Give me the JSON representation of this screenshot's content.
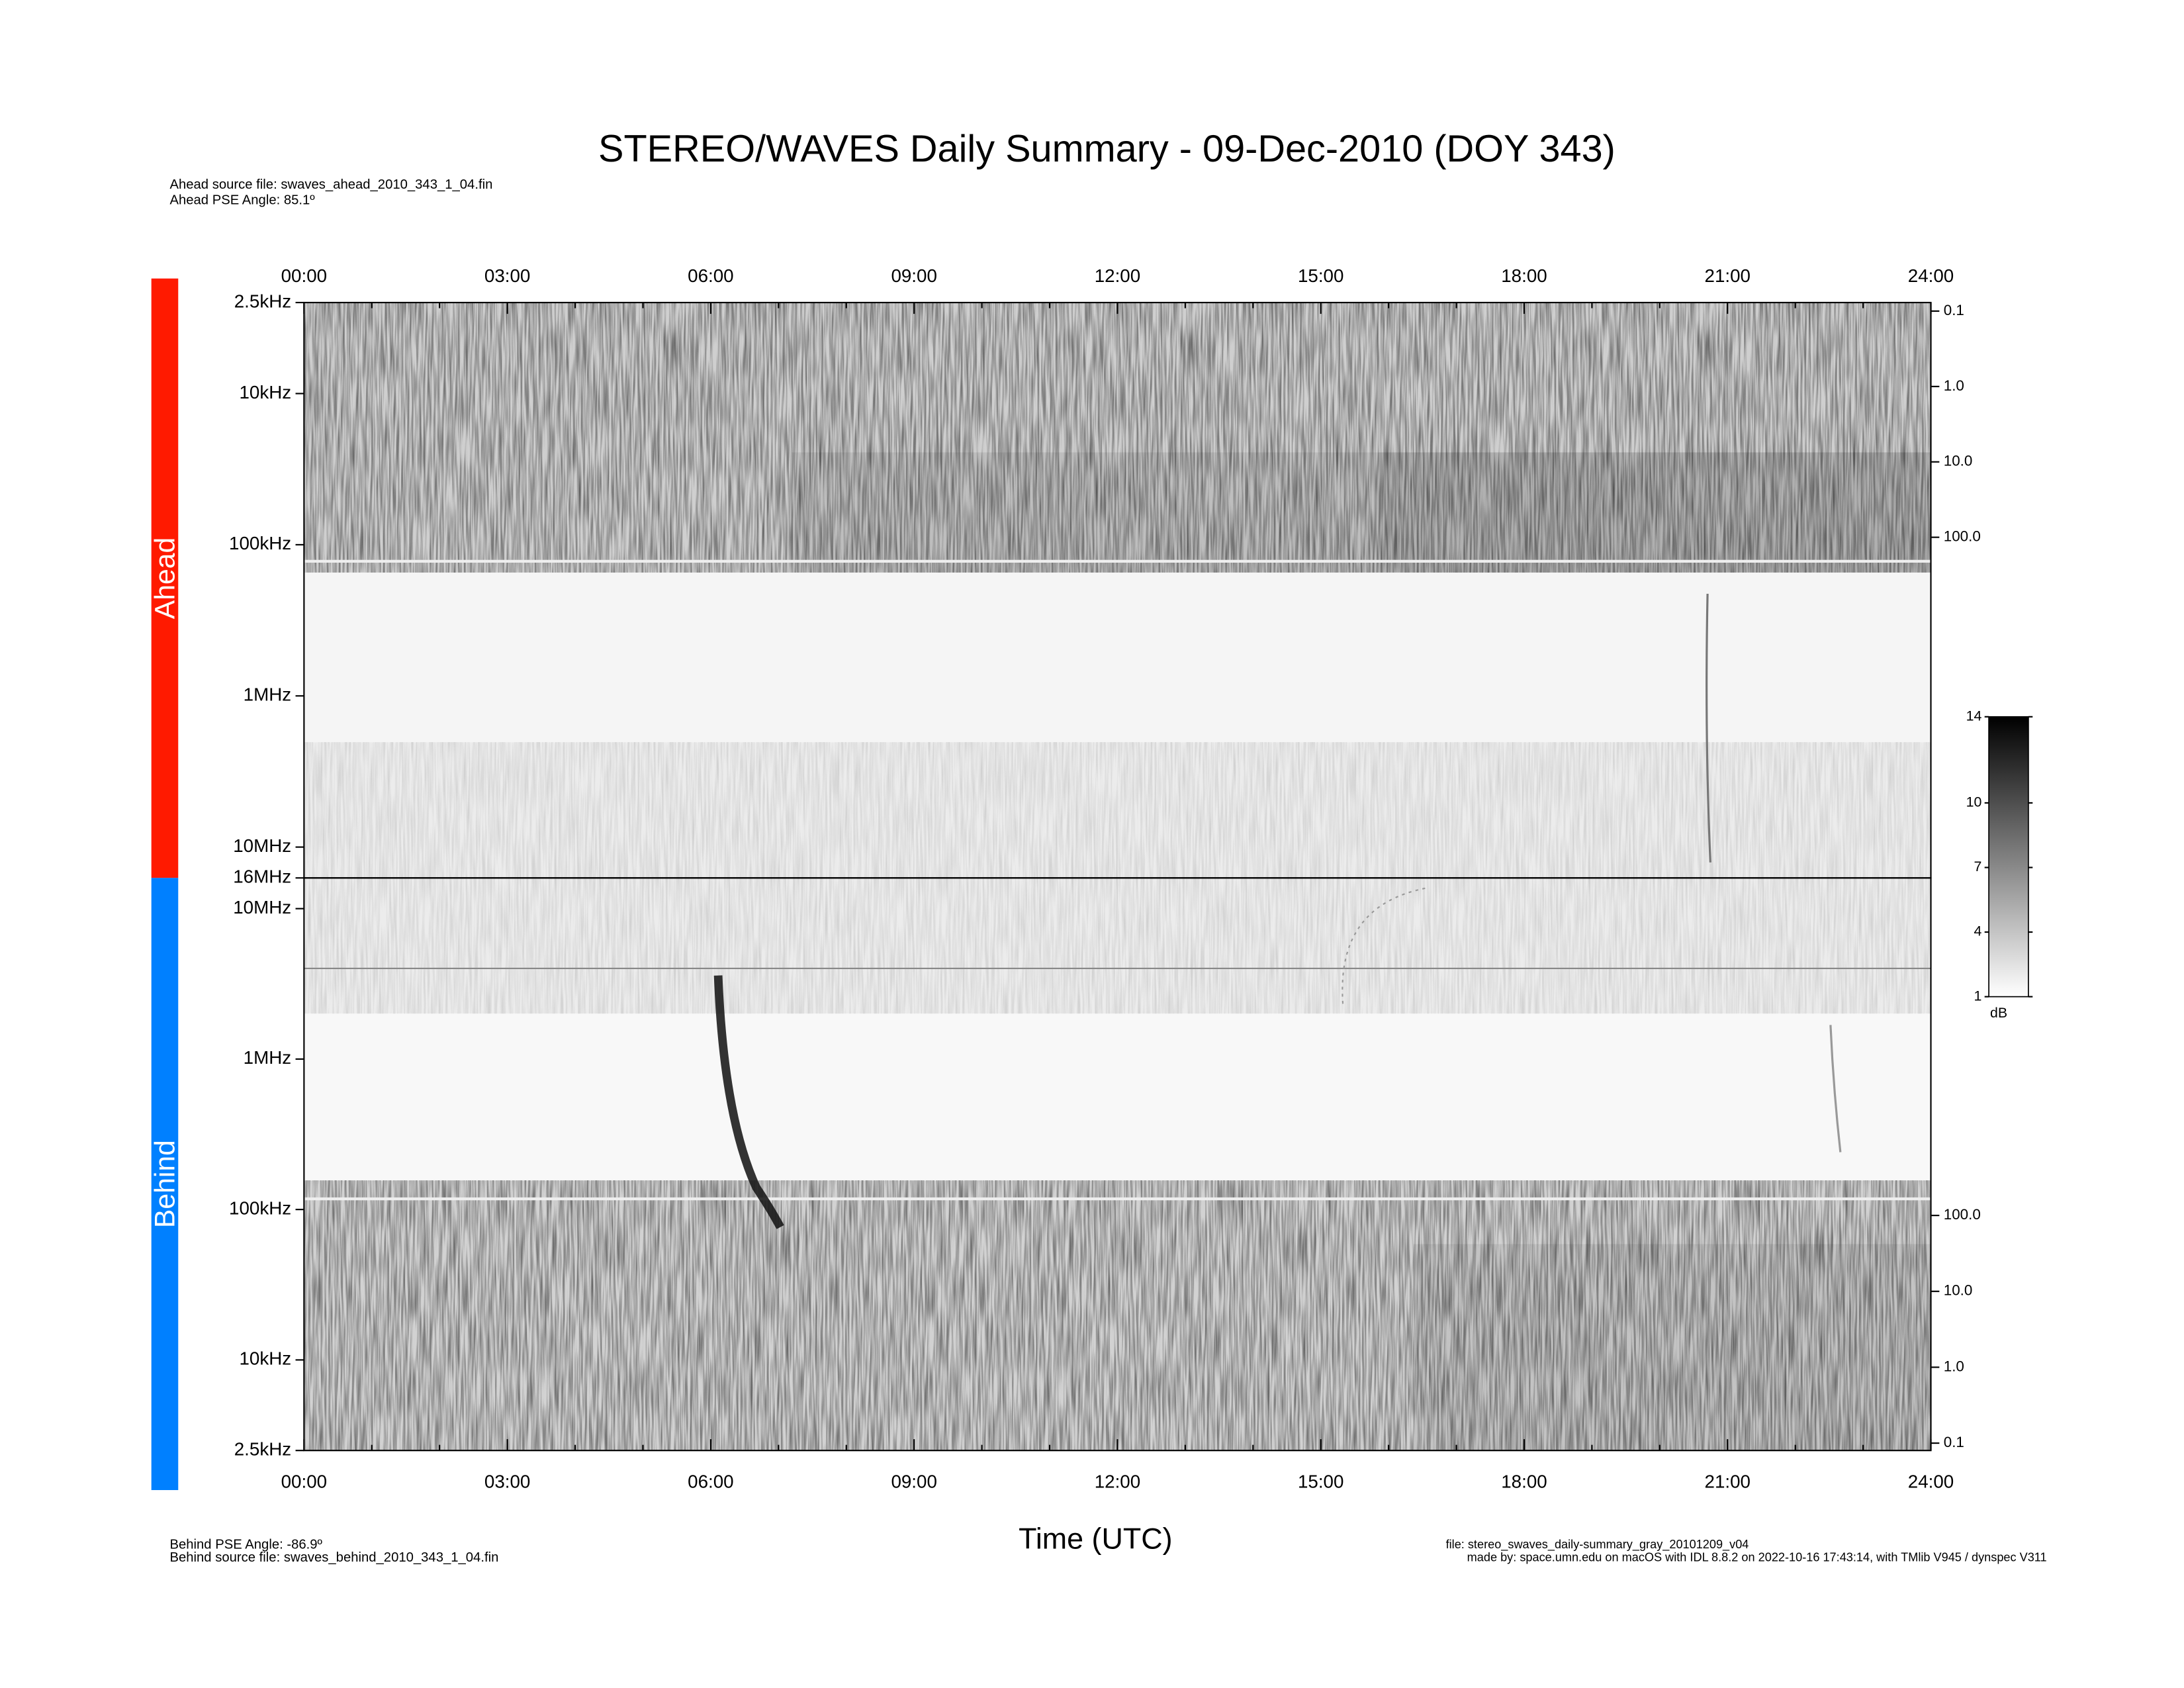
{
  "chart_data": {
    "type": "spectrogram",
    "title": "STEREO/WAVES Daily Summary - 09-Dec-2010 (DOY 343)",
    "xlabel": "Time (UTC)",
    "xlim": [
      0,
      24
    ],
    "xticks": [
      {
        "value": 0,
        "label": "00:00"
      },
      {
        "value": 3,
        "label": "03:00"
      },
      {
        "value": 6,
        "label": "06:00"
      },
      {
        "value": 9,
        "label": "09:00"
      },
      {
        "value": 12,
        "label": "12:00"
      },
      {
        "value": 15,
        "label": "15:00"
      },
      {
        "value": 18,
        "label": "18:00"
      },
      {
        "value": 21,
        "label": "21:00"
      },
      {
        "value": 24,
        "label": "24:00"
      }
    ],
    "xminorticks": [
      1,
      2,
      4,
      5,
      7,
      8,
      10,
      11,
      13,
      14,
      16,
      17,
      19,
      20,
      22,
      23
    ],
    "log_y": true,
    "panels": [
      {
        "name": "Ahead",
        "color": "#ff1a00",
        "ylim": [
          16000,
          2.5
        ],
        "yticks": [
          {
            "value": 2.5,
            "label": "2.5kHz"
          },
          {
            "value": 10,
            "label": "10kHz"
          },
          {
            "value": 100,
            "label": "100kHz"
          },
          {
            "value": 1000,
            "label": "1MHz"
          },
          {
            "value": 10000,
            "label": "10MHz"
          },
          {
            "value": 16000,
            "label": "16MHz"
          }
        ],
        "y2lim": [
          3300000,
          0.077
        ],
        "y2ticks": [
          {
            "value": 0.1,
            "label": "0.1"
          },
          {
            "value": 1,
            "label": "1.0"
          },
          {
            "value": 10,
            "label": "10.0"
          },
          {
            "value": 100,
            "label": "100.0"
          }
        ]
      },
      {
        "name": "Behind",
        "color": "#0080ff",
        "ylim": [
          2.5,
          16000
        ],
        "yticks": [
          {
            "value": 2.5,
            "label": "2.5kHz"
          },
          {
            "value": 10,
            "label": "10kHz"
          },
          {
            "value": 100,
            "label": "100kHz"
          },
          {
            "value": 1000,
            "label": "1MHz"
          },
          {
            "value": 10000,
            "label": "10MHz"
          }
        ],
        "y2lim": [
          0.08,
          2800000
        ],
        "y2ticks": [
          {
            "value": 0.1,
            "label": "0.1"
          },
          {
            "value": 1,
            "label": "1.0"
          },
          {
            "value": 10,
            "label": "10.0"
          },
          {
            "value": 100,
            "label": "100.0"
          }
        ]
      }
    ],
    "colorbar": {
      "label": "dB",
      "lim": [
        1,
        14
      ],
      "ticks": [
        1,
        4,
        7,
        10,
        14
      ]
    },
    "notes": {
      "ahead_source": "Ahead source file: swaves_ahead_2010_343_1_04.fin",
      "ahead_angle": "Ahead PSE Angle:   85.1º",
      "behind_angle": "Behind PSE Angle:  -86.9º",
      "behind_source": "Behind source file: swaves_behind_2010_343_1_04.fin",
      "file": "file: stereo_swaves_daily-summary_gray_20101209_v04",
      "made_by": "made by: space.umn.edu on macOS with IDL 8.8.2 on 2022-10-16 17:43:14, with TMlib V945 / dynspec V311"
    }
  }
}
